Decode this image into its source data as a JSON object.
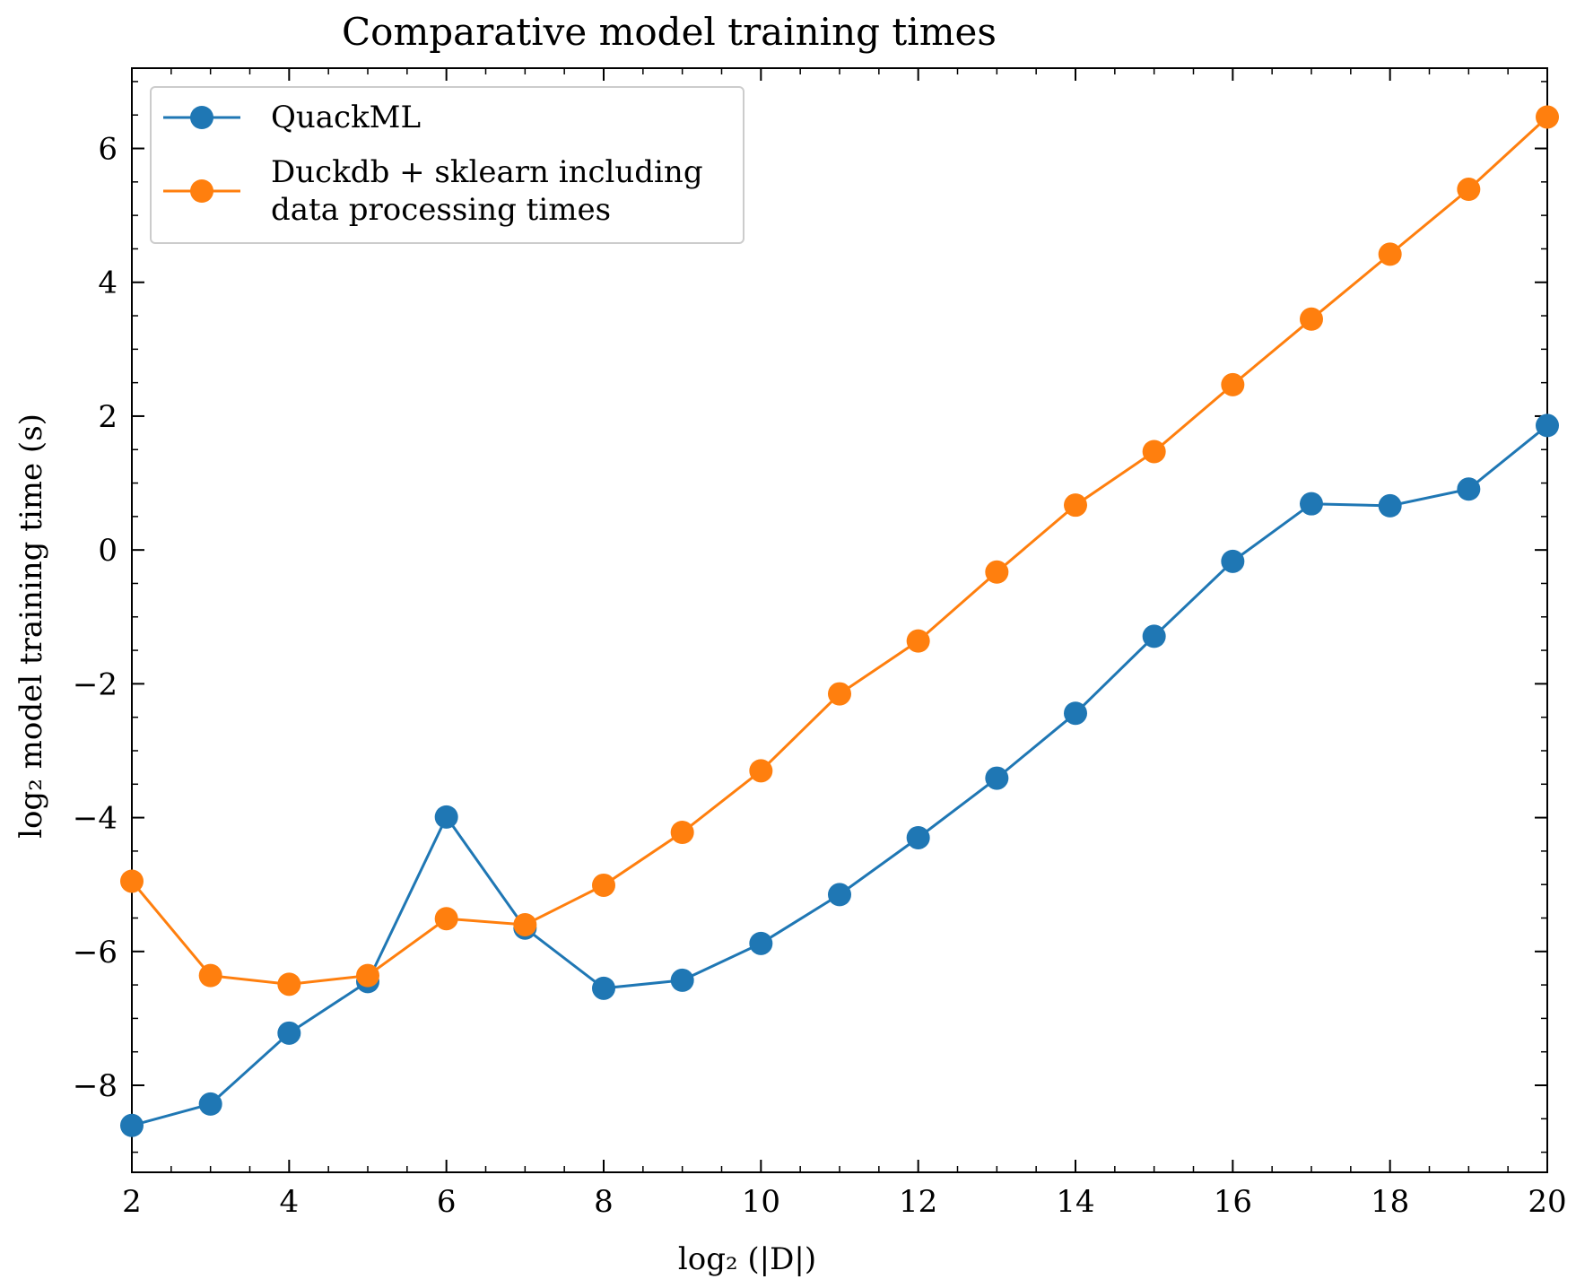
{
  "chart_data": {
    "type": "line",
    "title": "Comparative model training times",
    "xlabel": "log₂ (|D|)",
    "ylabel": "log₂ model training time (s)",
    "xlim": [
      2,
      20
    ],
    "ylim": [
      -9.3,
      7.2
    ],
    "xticks": [
      2,
      4,
      6,
      8,
      10,
      12,
      14,
      16,
      18,
      20
    ],
    "xtick_labels": [
      "2",
      "4",
      "6",
      "8",
      "10",
      "12",
      "14",
      "16",
      "18",
      "20"
    ],
    "yticks": [
      -8,
      -6,
      -4,
      -2,
      0,
      2,
      4,
      6
    ],
    "ytick_labels": [
      "−8",
      "−6",
      "−4",
      "−2",
      "0",
      "2",
      "4",
      "6"
    ],
    "grid": false,
    "legend_position": "top-left",
    "x": [
      2,
      3,
      4,
      5,
      6,
      7,
      8,
      9,
      10,
      11,
      12,
      13,
      14,
      15,
      16,
      17,
      18,
      19,
      20
    ],
    "series": [
      {
        "name": "QuackML",
        "color": "#1f77b4",
        "values": [
          -8.6,
          -8.28,
          -7.22,
          -6.45,
          -3.99,
          -5.65,
          -6.55,
          -6.43,
          -5.88,
          -5.15,
          -4.3,
          -3.41,
          -2.44,
          -1.29,
          -0.17,
          0.69,
          0.66,
          0.91,
          1.86
        ]
      },
      {
        "name": "Duckdb + sklearn including data processing times",
        "name_lines": [
          "Duckdb + sklearn including",
          "data processing times"
        ],
        "color": "#ff7f0e",
        "values": [
          -4.95,
          -6.36,
          -6.49,
          -6.36,
          -5.51,
          -5.6,
          -5.01,
          -4.22,
          -3.3,
          -2.15,
          -1.36,
          -0.33,
          0.67,
          1.47,
          2.47,
          3.45,
          4.42,
          5.39,
          6.47
        ]
      }
    ]
  }
}
